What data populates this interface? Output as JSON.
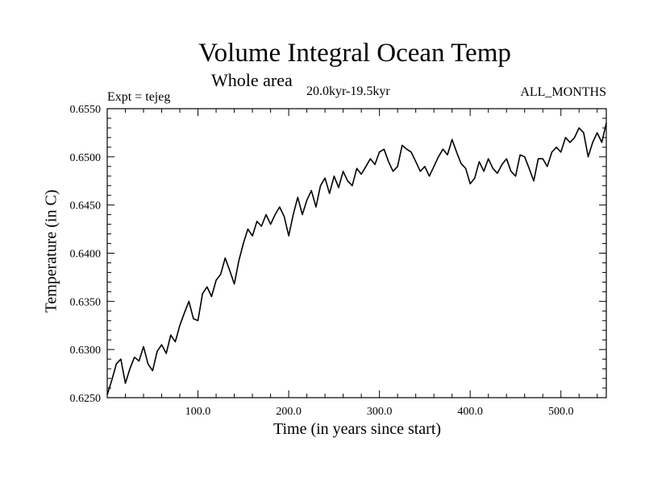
{
  "chart_data": {
    "type": "line",
    "title": "Volume Integral Ocean Temp",
    "subtitle": "Whole area",
    "period": "20.0kyr-19.5kyr",
    "expt": "Expt = tejeg",
    "months": "ALL_MONTHS",
    "xlabel": "Time (in years since start)",
    "ylabel": "Temperature (in C)",
    "xlim": [
      0,
      550
    ],
    "ylim": [
      0.625,
      0.655
    ],
    "x_ticks": [
      {
        "value": 100,
        "label": "100.0"
      },
      {
        "value": 200,
        "label": "200.0"
      },
      {
        "value": 300,
        "label": "300.0"
      },
      {
        "value": 400,
        "label": "400.0"
      },
      {
        "value": 500,
        "label": "500.0"
      }
    ],
    "y_ticks": [
      {
        "value": 0.625,
        "label": "0.6250"
      },
      {
        "value": 0.63,
        "label": "0.6300"
      },
      {
        "value": 0.635,
        "label": "0.6350"
      },
      {
        "value": 0.64,
        "label": "0.6400"
      },
      {
        "value": 0.645,
        "label": "0.6450"
      },
      {
        "value": 0.65,
        "label": "0.6500"
      },
      {
        "value": 0.655,
        "label": "0.6550"
      }
    ],
    "series": [
      {
        "name": "tejeg",
        "x": [
          0,
          5,
          10,
          15,
          20,
          25,
          30,
          35,
          40,
          45,
          50,
          55,
          60,
          65,
          70,
          75,
          80,
          85,
          90,
          95,
          100,
          105,
          110,
          115,
          120,
          125,
          130,
          135,
          140,
          145,
          150,
          155,
          160,
          165,
          170,
          175,
          180,
          185,
          190,
          195,
          200,
          205,
          210,
          215,
          220,
          225,
          230,
          235,
          240,
          245,
          250,
          255,
          260,
          265,
          270,
          275,
          280,
          285,
          290,
          295,
          300,
          305,
          310,
          315,
          320,
          325,
          330,
          335,
          340,
          345,
          350,
          355,
          360,
          365,
          370,
          375,
          380,
          385,
          390,
          395,
          400,
          405,
          410,
          415,
          420,
          425,
          430,
          435,
          440,
          445,
          450,
          455,
          460,
          465,
          470,
          475,
          480,
          485,
          490,
          495,
          500,
          505,
          510,
          515,
          520,
          525,
          530,
          535,
          540,
          545,
          550
        ],
        "values": [
          0.6253,
          0.6268,
          0.6285,
          0.629,
          0.6265,
          0.628,
          0.6292,
          0.6288,
          0.6303,
          0.6285,
          0.6278,
          0.6298,
          0.6305,
          0.6296,
          0.6315,
          0.6308,
          0.6325,
          0.6338,
          0.635,
          0.6332,
          0.633,
          0.6358,
          0.6365,
          0.6355,
          0.6372,
          0.6378,
          0.6395,
          0.6382,
          0.6368,
          0.6392,
          0.641,
          0.6425,
          0.6418,
          0.6433,
          0.6428,
          0.644,
          0.643,
          0.644,
          0.6448,
          0.6438,
          0.6418,
          0.644,
          0.6458,
          0.644,
          0.6455,
          0.6465,
          0.6448,
          0.647,
          0.6478,
          0.6462,
          0.648,
          0.6468,
          0.6485,
          0.6475,
          0.647,
          0.6488,
          0.6482,
          0.649,
          0.6498,
          0.6492,
          0.6505,
          0.6508,
          0.6495,
          0.6485,
          0.649,
          0.6512,
          0.6508,
          0.6505,
          0.6495,
          0.6485,
          0.649,
          0.648,
          0.649,
          0.65,
          0.6508,
          0.6502,
          0.6518,
          0.6505,
          0.6493,
          0.6488,
          0.6472,
          0.6478,
          0.6495,
          0.6485,
          0.6498,
          0.6488,
          0.6483,
          0.6492,
          0.6498,
          0.6485,
          0.648,
          0.6502,
          0.65,
          0.6488,
          0.6475,
          0.6498,
          0.6498,
          0.649,
          0.6505,
          0.651,
          0.6505,
          0.652,
          0.6515,
          0.652,
          0.653,
          0.6525,
          0.65,
          0.6515,
          0.6525,
          0.6515,
          0.6535
        ]
      }
    ]
  }
}
